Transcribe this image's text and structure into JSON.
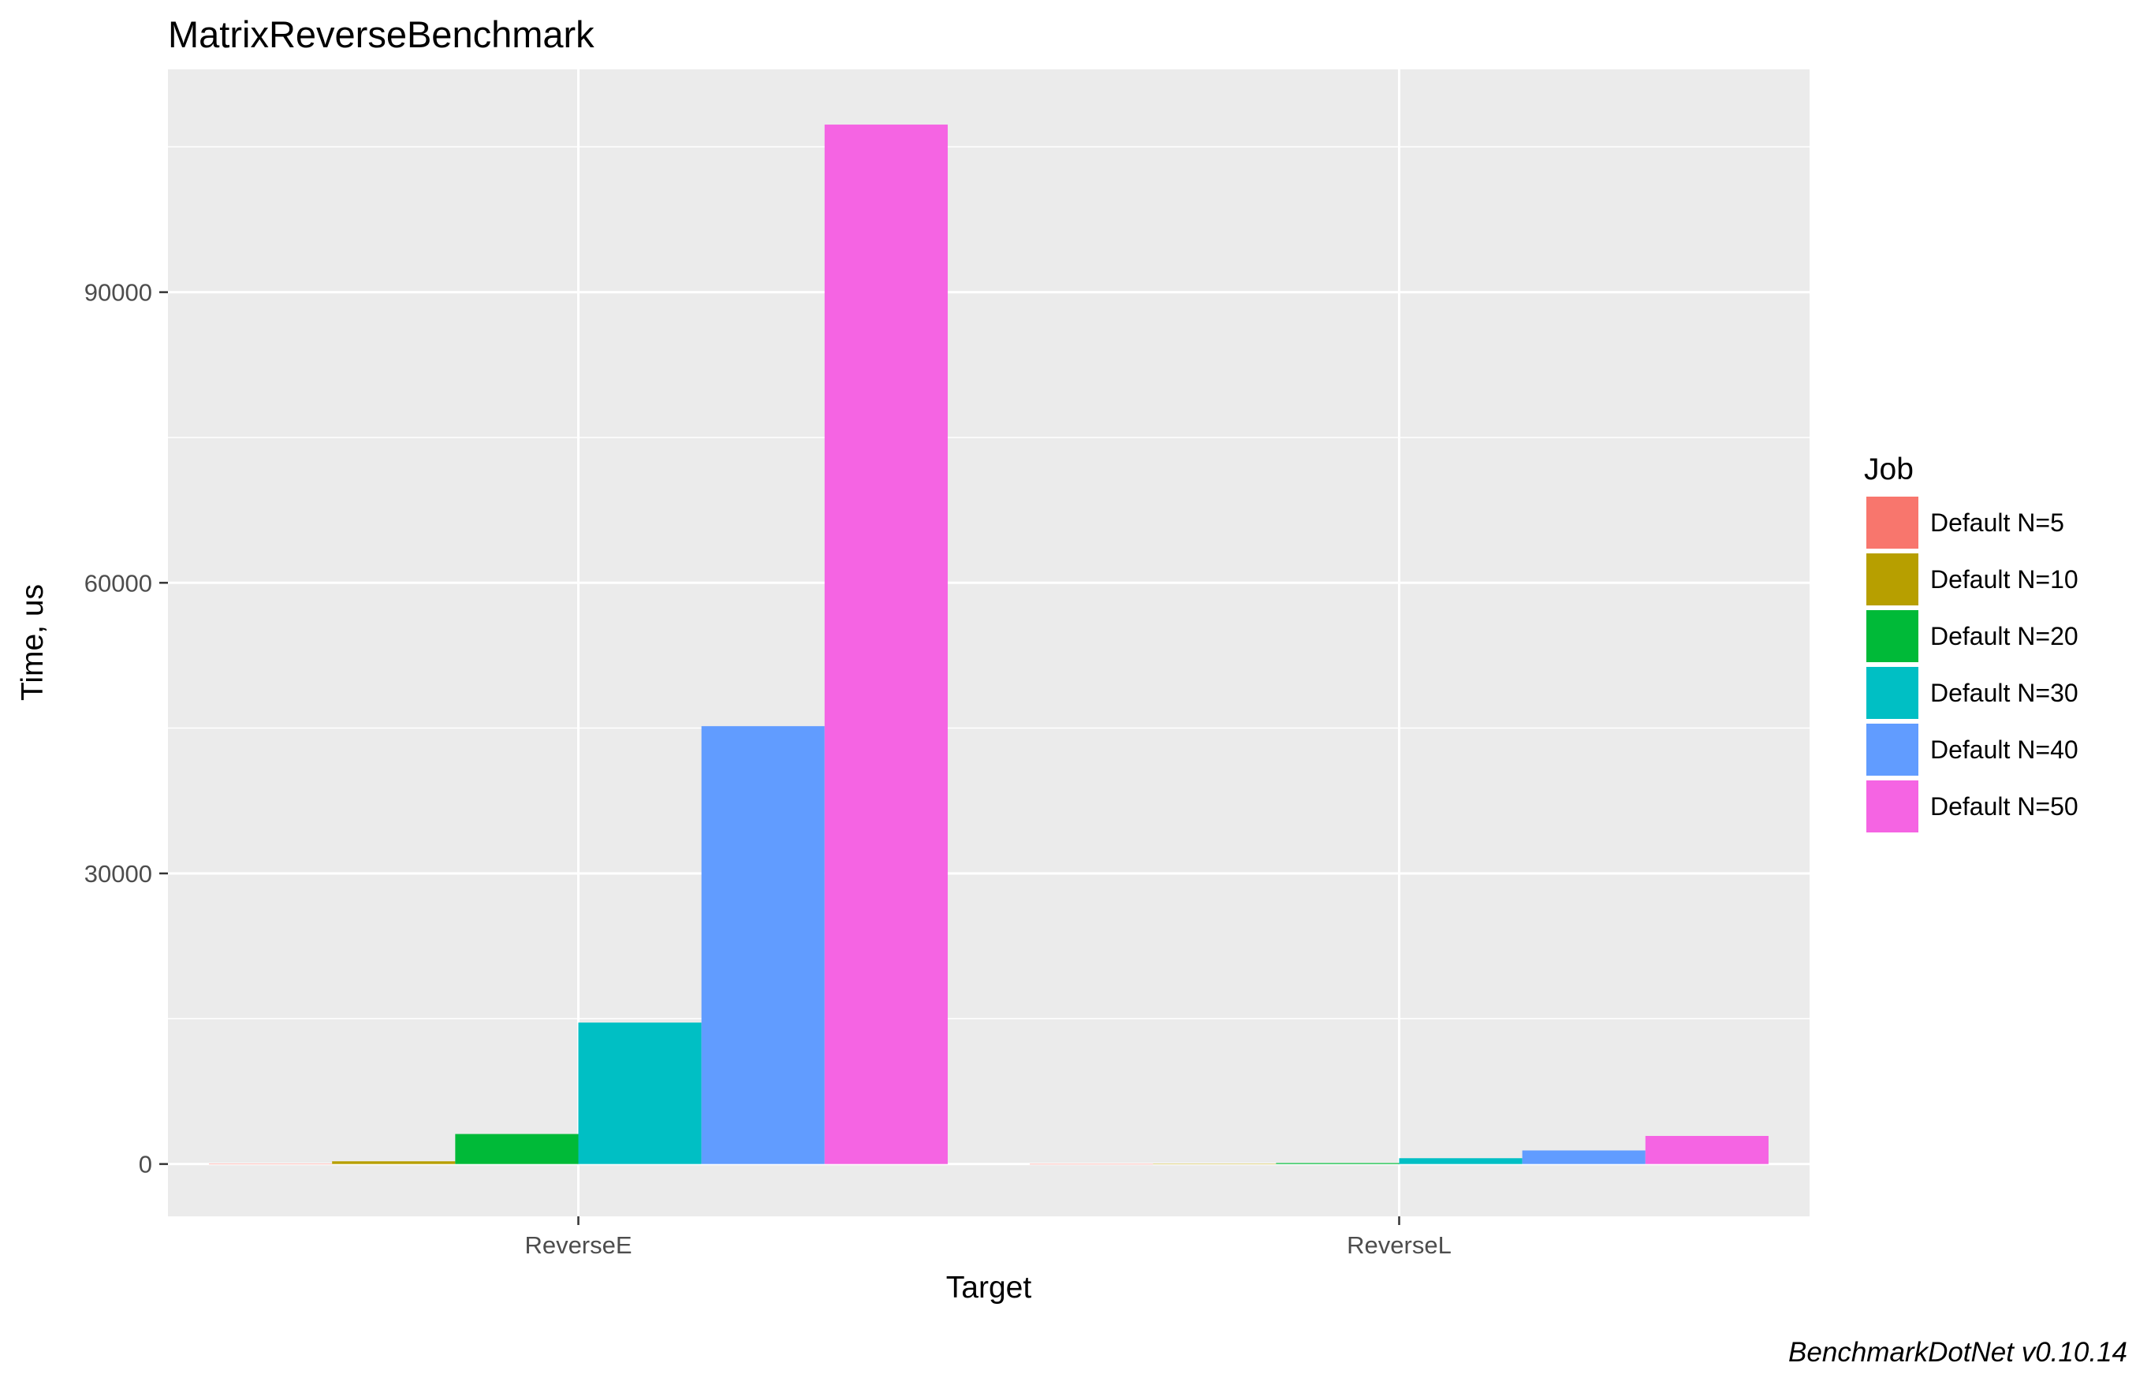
{
  "chart_data": {
    "type": "bar",
    "title": "MatrixReverseBenchmark",
    "xlabel": "Target",
    "ylabel": "Time, us",
    "caption": "BenchmarkDotNet v0.10.14",
    "categories": [
      "ReverseE",
      "ReverseL"
    ],
    "ylim": [
      -5400,
      113000
    ],
    "yticks": [
      0,
      30000,
      60000,
      90000
    ],
    "y_tick_labels": [
      "0",
      "30000",
      "60000",
      "90000"
    ],
    "grid": true,
    "legend": {
      "title": "Job",
      "position": "right"
    },
    "series": [
      {
        "name": "Default N=5",
        "color": "#F8766D",
        "values": [
          12,
          2
        ]
      },
      {
        "name": "Default N=10",
        "color": "#B79F00",
        "values": [
          280,
          15
        ]
      },
      {
        "name": "Default N=20",
        "color": "#00BA38",
        "values": [
          3100,
          100
        ]
      },
      {
        "name": "Default N=30",
        "color": "#00BFC4",
        "values": [
          14600,
          600
        ]
      },
      {
        "name": "Default N=40",
        "color": "#619CFF",
        "values": [
          45200,
          1400
        ]
      },
      {
        "name": "Default N=50",
        "color": "#F564E3",
        "values": [
          107300,
          2900
        ]
      }
    ]
  }
}
